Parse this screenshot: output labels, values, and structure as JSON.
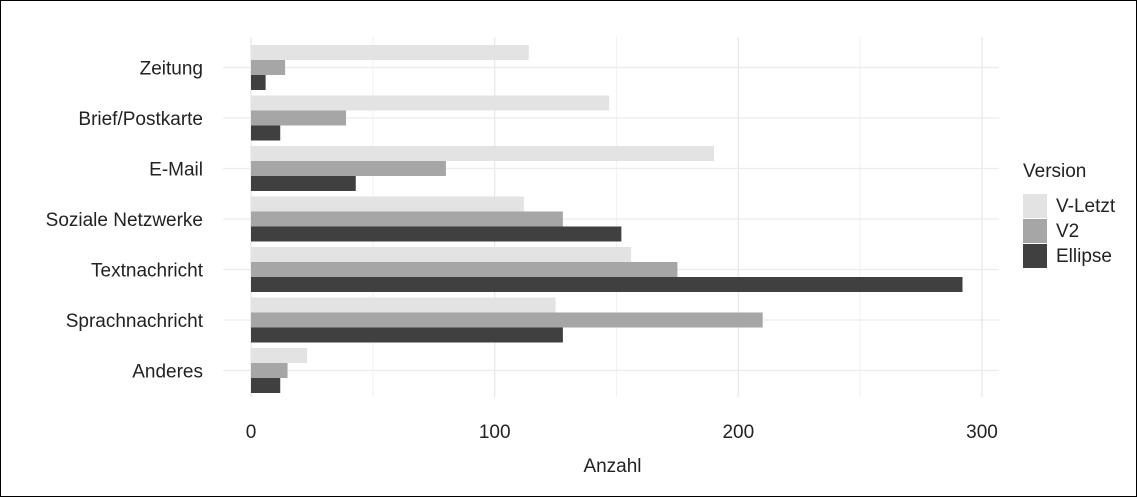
{
  "chart_data": {
    "type": "bar",
    "orientation": "horizontal",
    "categories": [
      "Zeitung",
      "Brief/Postkarte",
      "E-Mail",
      "Soziale Netzwerke",
      "Textnachricht",
      "Sprachnachricht",
      "Anderes"
    ],
    "series": [
      {
        "name": "V-Letzt",
        "color": "#e3e3e3",
        "values": [
          114,
          147,
          190,
          112,
          156,
          125,
          23
        ]
      },
      {
        "name": "V2",
        "color": "#a6a6a6",
        "values": [
          14,
          39,
          80,
          128,
          175,
          210,
          15
        ]
      },
      {
        "name": "Ellipse",
        "color": "#404040",
        "values": [
          6,
          12,
          43,
          152,
          292,
          128,
          12
        ]
      }
    ],
    "xlabel": "Anzahl",
    "ylabel": "",
    "xlim": [
      0,
      300
    ],
    "xticks": [
      0,
      100,
      200,
      300
    ],
    "grid": true,
    "legend": {
      "title": "Version",
      "position": "right"
    }
  }
}
